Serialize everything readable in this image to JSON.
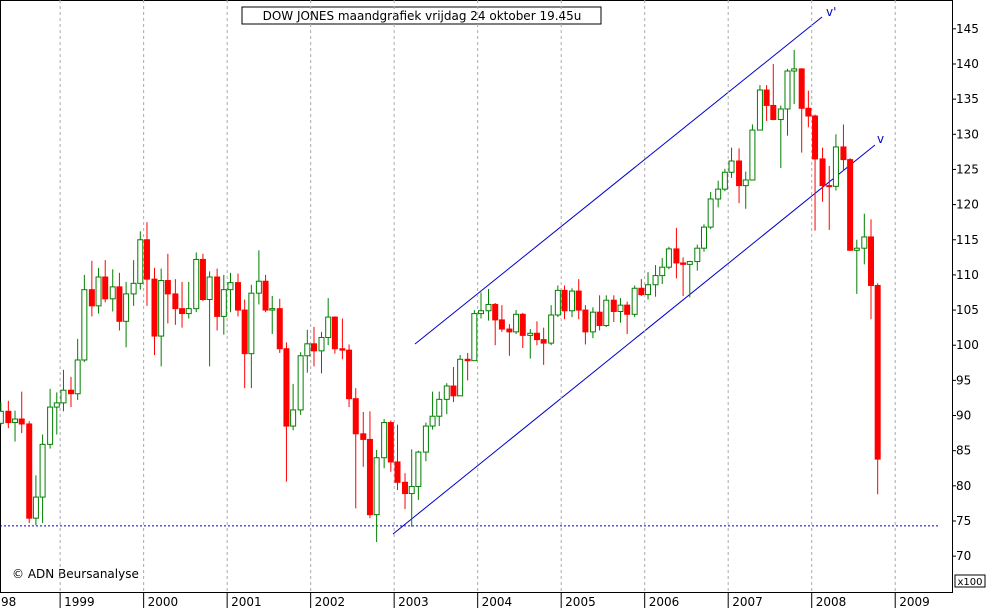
{
  "chart_data": {
    "type": "candlestick",
    "title": "DOW JONES maandgrafiek vrijdag 24 oktober 19.45u",
    "copyright": "© ADN Beursanalyse",
    "y_unit": "x100",
    "annotations": [
      "v'",
      "v"
    ],
    "up_color": "#008000",
    "down_color": "#ff0000",
    "reference_line": 74.3,
    "grid": "x",
    "xlim": [
      1998.28,
      2009.68
    ],
    "ylim": [
      64.9,
      149.1
    ],
    "xticks": [
      {
        "value": 1998,
        "label": "98"
      },
      1999,
      2000,
      2001,
      2002,
      2003,
      2004,
      2005,
      2006,
      2007,
      2008,
      2009
    ],
    "yticks": [
      70,
      75,
      80,
      85,
      90,
      95,
      100,
      105,
      110,
      115,
      120,
      125,
      130,
      135,
      140,
      145
    ],
    "x": [
      1998.29,
      1998.38,
      1998.46,
      1998.54,
      1998.63,
      1998.71,
      1998.79,
      1998.88,
      1998.96,
      1999.04,
      1999.13,
      1999.21,
      1999.29,
      1999.38,
      1999.46,
      1999.54,
      1999.63,
      1999.71,
      1999.79,
      1999.88,
      1999.96,
      2000.04,
      2000.13,
      2000.21,
      2000.29,
      2000.38,
      2000.46,
      2000.54,
      2000.63,
      2000.71,
      2000.79,
      2000.88,
      2000.96,
      2001.04,
      2001.13,
      2001.21,
      2001.29,
      2001.38,
      2001.46,
      2001.54,
      2001.63,
      2001.71,
      2001.79,
      2001.88,
      2001.96,
      2002.04,
      2002.13,
      2002.21,
      2002.29,
      2002.38,
      2002.46,
      2002.54,
      2002.63,
      2002.71,
      2002.79,
      2002.88,
      2002.96,
      2003.04,
      2003.13,
      2003.21,
      2003.29,
      2003.38,
      2003.46,
      2003.54,
      2003.63,
      2003.71,
      2003.79,
      2003.88,
      2003.96,
      2004.04,
      2004.13,
      2004.21,
      2004.29,
      2004.38,
      2004.46,
      2004.54,
      2004.63,
      2004.71,
      2004.79,
      2004.88,
      2004.96,
      2005.04,
      2005.13,
      2005.21,
      2005.29,
      2005.38,
      2005.46,
      2005.54,
      2005.63,
      2005.71,
      2005.79,
      2005.88,
      2005.96,
      2006.04,
      2006.13,
      2006.21,
      2006.29,
      2006.38,
      2006.46,
      2006.54,
      2006.63,
      2006.71,
      2006.79,
      2006.88,
      2006.96,
      2007.04,
      2007.13,
      2007.21,
      2007.29,
      2007.38,
      2007.46,
      2007.54,
      2007.63,
      2007.71,
      2007.79,
      2007.88,
      2007.96,
      2008.04,
      2008.13,
      2008.21,
      2008.29,
      2008.38,
      2008.46,
      2008.54,
      2008.63,
      2008.71,
      2008.79
    ],
    "open": [
      88.9,
      90.6,
      89.0,
      89.5,
      88.8,
      75.4,
      78.4,
      85.9,
      91.2,
      91.8,
      93.6,
      93.1,
      97.9,
      107.9,
      105.6,
      109.7,
      106.6,
      108.3,
      103.4,
      107.3,
      108.8,
      115.0,
      109.4,
      101.3,
      109.2,
      107.3,
      105.2,
      104.5,
      105.2,
      112.2,
      106.5,
      109.7,
      104.1,
      107.9,
      108.9,
      105.0,
      98.8,
      107.4,
      109.1,
      105.0,
      105.2,
      99.5,
      88.5,
      90.8,
      98.5,
      100.2,
      99.2,
      101.1,
      104.0,
      99.5,
      99.3,
      92.4,
      87.4,
      86.6,
      75.9,
      84.0,
      89.0,
      83.4,
      80.5,
      78.9,
      79.9,
      84.8,
      88.5,
      89.9,
      92.3,
      94.2,
      92.8,
      98.0,
      97.8,
      104.5,
      104.9,
      105.8,
      103.6,
      102.3,
      101.9,
      104.4,
      101.4,
      101.7,
      100.8,
      100.3,
      104.3,
      107.8,
      104.9,
      107.7,
      105.0,
      101.9,
      104.7,
      102.8,
      106.4,
      104.8,
      105.7,
      104.4,
      108.1,
      107.2,
      108.6,
      109.9,
      111.1,
      113.7,
      111.7,
      111.5,
      111.9,
      113.8,
      116.8,
      120.8,
      122.2,
      124.6,
      126.2,
      122.7,
      123.5,
      130.6,
      136.3,
      134.1,
      132.1,
      133.6,
      139.0,
      139.3,
      133.7,
      132.6,
      126.5,
      122.7,
      122.6,
      128.2,
      126.4,
      113.5,
      113.8,
      115.4,
      108.5
    ],
    "high": [
      91.9,
      92.1,
      90.7,
      93.4,
      89.2,
      81.5,
      87.3,
      93.8,
      93.3,
      96.5,
      95.5,
      100.9,
      110.0,
      112.0,
      111.0,
      112.1,
      110.8,
      110.3,
      109.0,
      112.1,
      116.2,
      117.5,
      111.0,
      110.9,
      113.0,
      109.4,
      109.0,
      109.0,
      113.2,
      113.0,
      110.5,
      110.9,
      110.0,
      110.3,
      110.2,
      106.5,
      108.6,
      113.5,
      110.0,
      107.0,
      106.6,
      100.4,
      94.5,
      99.0,
      102.2,
      102.6,
      101.9,
      106.7,
      104.1,
      103.8,
      100.1,
      93.9,
      90.5,
      90.6,
      85.1,
      89.5,
      89.3,
      88.7,
      81.8,
      85.2,
      85.0,
      89.0,
      93.4,
      93.4,
      94.6,
      96.9,
      98.6,
      98.9,
      105.0,
      107.5,
      108.0,
      106.0,
      105.7,
      103.0,
      105.0,
      104.6,
      102.3,
      103.4,
      102.5,
      105.7,
      108.5,
      108.5,
      108.1,
      109.4,
      105.7,
      105.4,
      107.1,
      107.1,
      107.1,
      106.7,
      106.2,
      108.5,
      109.4,
      110.4,
      111.4,
      112.4,
      114.0,
      116.7,
      112.5,
      112.0,
      114.3,
      117.2,
      121.8,
      123.4,
      125.1,
      128.1,
      128.0,
      124.7,
      131.4,
      137.0,
      137.0,
      140.0,
      134.1,
      139.3,
      142.0,
      139.4,
      136.2,
      132.8,
      128.1,
      125.5,
      130.0,
      131.4,
      126.6,
      115.0,
      118.7,
      117.9,
      108.8
    ],
    "low": [
      88.6,
      88.2,
      86.3,
      87.5,
      74.7,
      74.4,
      74.7,
      85.3,
      87.3,
      90.6,
      91.2,
      92.2,
      97.6,
      104.1,
      104.5,
      106.1,
      104.8,
      102.1,
      99.7,
      105.6,
      107.9,
      105.6,
      98.6,
      97.0,
      103.1,
      102.9,
      102.5,
      103.8,
      104.7,
      106.3,
      97.0,
      102.1,
      101.5,
      104.7,
      104.1,
      93.9,
      93.9,
      105.8,
      104.7,
      101.6,
      98.9,
      80.6,
      87.9,
      90.1,
      96.1,
      97.0,
      96.0,
      100.0,
      98.8,
      98.0,
      91.2,
      76.8,
      82.7,
      75.4,
      72.0,
      82.5,
      82.0,
      79.4,
      76.7,
      74.2,
      78.0,
      83.5,
      88.0,
      88.5,
      90.2,
      91.9,
      92.8,
      95.0,
      97.8,
      103.8,
      103.5,
      100.0,
      101.9,
      98.5,
      101.6,
      99.6,
      98.1,
      100.0,
      97.2,
      100.0,
      104.0,
      103.7,
      104.0,
      103.7,
      100.1,
      101.0,
      102.1,
      102.6,
      103.3,
      103.2,
      101.6,
      104.0,
      107.0,
      106.5,
      106.9,
      108.7,
      110.8,
      109.5,
      107.0,
      106.8,
      110.6,
      113.3,
      116.5,
      119.6,
      121.9,
      123.8,
      120.2,
      119.4,
      123.5,
      130.6,
      131.9,
      132.0,
      125.2,
      129.8,
      134.3,
      127.4,
      131.0,
      116.3,
      120.4,
      116.4,
      122.0,
      124.8,
      113.5,
      107.3,
      111.5,
      103.7,
      78.8
    ],
    "close": [
      90.6,
      89.0,
      89.5,
      88.8,
      75.4,
      78.4,
      85.9,
      91.2,
      91.8,
      93.6,
      93.1,
      97.9,
      107.9,
      105.6,
      109.7,
      106.6,
      108.3,
      103.4,
      107.3,
      108.8,
      115.0,
      109.4,
      101.3,
      109.2,
      107.3,
      105.2,
      104.5,
      105.2,
      112.2,
      106.5,
      109.7,
      104.1,
      107.9,
      108.9,
      105.0,
      98.8,
      107.4,
      109.1,
      105.0,
      105.2,
      99.5,
      88.5,
      90.8,
      98.5,
      100.2,
      99.2,
      101.1,
      104.0,
      99.5,
      99.3,
      92.4,
      87.4,
      86.6,
      75.9,
      84.0,
      89.0,
      83.4,
      80.5,
      78.9,
      79.9,
      84.8,
      88.5,
      89.9,
      92.3,
      94.2,
      92.8,
      98.0,
      97.8,
      104.5,
      104.9,
      105.8,
      103.6,
      102.3,
      101.9,
      104.4,
      101.4,
      101.7,
      100.8,
      100.3,
      104.3,
      107.8,
      104.9,
      107.7,
      105.0,
      101.9,
      104.7,
      102.8,
      106.4,
      104.8,
      105.7,
      104.4,
      108.1,
      107.2,
      108.6,
      109.9,
      111.1,
      113.7,
      111.7,
      111.5,
      111.9,
      113.8,
      116.8,
      120.8,
      122.2,
      124.6,
      126.2,
      122.7,
      123.5,
      130.6,
      136.3,
      134.1,
      132.1,
      133.6,
      139.0,
      139.3,
      133.7,
      132.6,
      126.5,
      122.7,
      122.6,
      128.2,
      126.4,
      113.5,
      113.8,
      115.4,
      108.5,
      83.8
    ]
  }
}
